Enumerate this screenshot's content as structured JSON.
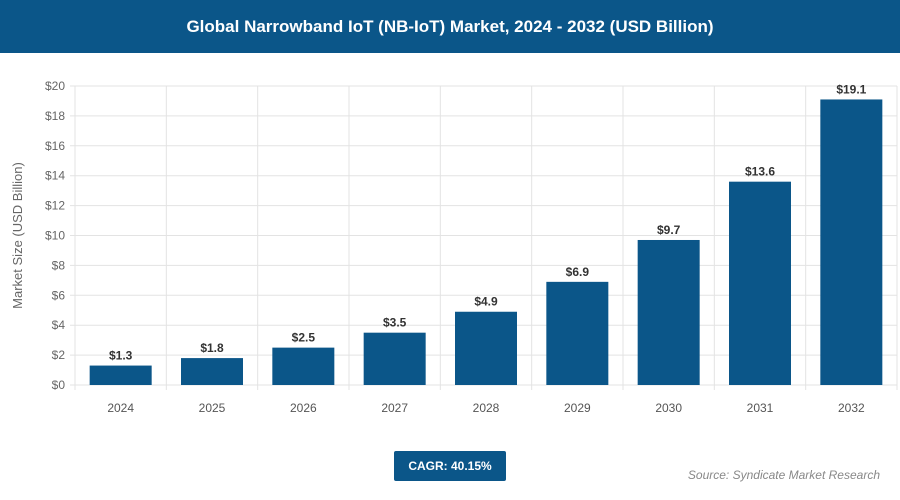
{
  "header": {
    "title": "Global Narrowband IoT (NB-IoT) Market, 2024 - 2032 (USD Billion)"
  },
  "chart_data": {
    "type": "bar",
    "title": "Global Narrowband IoT (NB-IoT) Market, 2024 - 2032 (USD Billion)",
    "ylabel": "Market Size (USD Billion)",
    "xlabel": "",
    "categories": [
      "2024",
      "2025",
      "2026",
      "2027",
      "2028",
      "2029",
      "2030",
      "2031",
      "2032"
    ],
    "values": [
      1.3,
      1.8,
      2.5,
      3.5,
      4.9,
      6.9,
      9.7,
      13.6,
      19.1
    ],
    "data_labels": [
      "$1.3",
      "$1.8",
      "$2.5",
      "$3.5",
      "$4.9",
      "$6.9",
      "$9.7",
      "$13.6",
      "$19.1"
    ],
    "ylim": [
      0,
      20
    ],
    "yticks": [
      0,
      2,
      4,
      6,
      8,
      10,
      12,
      14,
      16,
      18,
      20
    ],
    "ytick_labels": [
      "$0",
      "$2",
      "$4",
      "$6",
      "$8",
      "$10",
      "$12",
      "$14",
      "$16",
      "$18",
      "$20"
    ],
    "grid": true,
    "bar_color": "#0b5689"
  },
  "footer": {
    "cagr": "CAGR: 40.15%",
    "source": "Source: Syndicate Market Research"
  }
}
